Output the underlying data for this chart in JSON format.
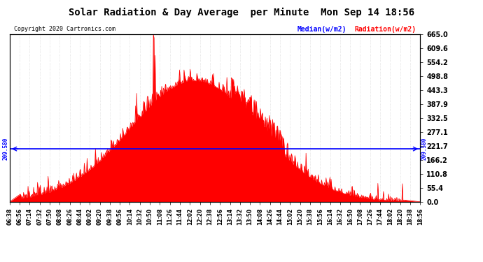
{
  "title": "Solar Radiation & Day Average  per Minute  Mon Sep 14 18:56",
  "copyright": "Copyright 2020 Cartronics.com",
  "median_label": "Median(w/m2)",
  "radiation_label": "Radiation(w/m2)",
  "median_value": 209.58,
  "ymax": 665.0,
  "ymin": 0.0,
  "yticks": [
    0.0,
    55.4,
    110.8,
    166.2,
    221.7,
    277.1,
    332.5,
    387.9,
    443.3,
    498.8,
    554.2,
    609.6,
    665.0
  ],
  "median_annotation": "209.580",
  "background_color": "#ffffff",
  "fill_color": "#ff0000",
  "line_color": "#ff0000",
  "median_color": "#0000ff",
  "title_color": "#000000",
  "copyright_color": "#000000",
  "grid_color": "#cccccc",
  "xtick_labels": [
    "06:38",
    "06:56",
    "07:14",
    "07:32",
    "07:50",
    "08:08",
    "08:26",
    "08:44",
    "09:02",
    "09:20",
    "09:38",
    "09:56",
    "10:14",
    "10:32",
    "10:50",
    "11:08",
    "11:26",
    "11:44",
    "12:02",
    "12:20",
    "12:38",
    "12:56",
    "13:14",
    "13:32",
    "13:50",
    "14:08",
    "14:26",
    "14:44",
    "15:02",
    "15:20",
    "15:38",
    "15:56",
    "16:14",
    "16:32",
    "16:50",
    "17:08",
    "17:26",
    "17:44",
    "18:02",
    "18:20",
    "18:38",
    "18:56"
  ]
}
